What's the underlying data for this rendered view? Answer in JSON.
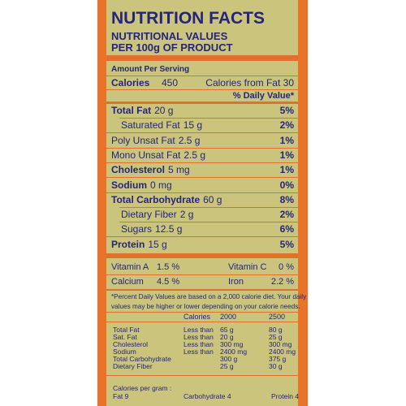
{
  "header": {
    "title": "NUTRITION FACTS",
    "subtitle": [
      "NUTRITIONAL VALUES",
      "PER 100g OF PRODUCT"
    ]
  },
  "serving": {
    "label": "Amount Per Serving",
    "calories_label": "Calories",
    "calories": "450",
    "fat_calories": "Calories from Fat 30",
    "dv_header": "% Daily Value*"
  },
  "nutrients": [
    {
      "name": "Total Fat",
      "amount": "20 g",
      "dv": "5%",
      "bold": true
    },
    {
      "name": "Saturated Fat",
      "amount": "15 g",
      "dv": "2%",
      "bold": false,
      "indent": true
    },
    {
      "name": "Poly Unsat Fat",
      "amount": "2.5 g",
      "dv": "1%",
      "bold": false
    },
    {
      "name": "Mono Unsat Fat",
      "amount": "2.5 g",
      "dv": "1%",
      "bold": false
    },
    {
      "name": "Cholesterol",
      "amount": "5 mg",
      "dv": "1%",
      "bold": true
    },
    {
      "name": "Sodium",
      "amount": "0 mg",
      "dv": "0%",
      "bold": true
    },
    {
      "name": "Total Carbohydrate",
      "amount": "60 g",
      "dv": "8%",
      "bold": true
    },
    {
      "name": "Dietary Fiber",
      "amount": "2 g",
      "dv": "2%",
      "bold": false,
      "indent": true
    },
    {
      "name": "Sugars",
      "amount": "12.5 g",
      "dv": "6%",
      "bold": false,
      "indent": true
    },
    {
      "name": "Protein",
      "amount": "15 g",
      "dv": "5%",
      "bold": true
    }
  ],
  "vitamins": [
    [
      {
        "name": "Vitamin A",
        "value": "1.5 %"
      },
      {
        "name": "Vitamin C",
        "value": "0 %"
      }
    ],
    [
      {
        "name": "Calcium",
        "value": "4.5 %"
      },
      {
        "name": "Iron",
        "value": "2.2 %"
      }
    ]
  ],
  "footnote": [
    "*Percent Daily Values are based on a 2,000 calorie diet. Your daily",
    "values may be higher or lower depending on your calorie needs."
  ],
  "table": {
    "header": [
      "Calories",
      "2000",
      "2500"
    ],
    "rows": [
      [
        "Total Fat",
        "Less than",
        "65 g",
        "80 g"
      ],
      [
        "Sat. Fat",
        "Less than",
        "20 g",
        "25 g"
      ],
      [
        "Cholesterol",
        "Less than",
        "300 mg",
        "300 mg"
      ],
      [
        "Sodium",
        "Less than",
        "2400 mg",
        "2400 mg"
      ],
      [
        "Total Carbohydrate",
        "",
        "300 g",
        "375 g"
      ],
      [
        "Dietary Fiber",
        "",
        "25 g",
        "30 g"
      ]
    ]
  },
  "per_gram": {
    "label": "Calories per gram :",
    "items": [
      "Fat 9",
      "Carbohydrate 4",
      "Protein 4"
    ]
  }
}
